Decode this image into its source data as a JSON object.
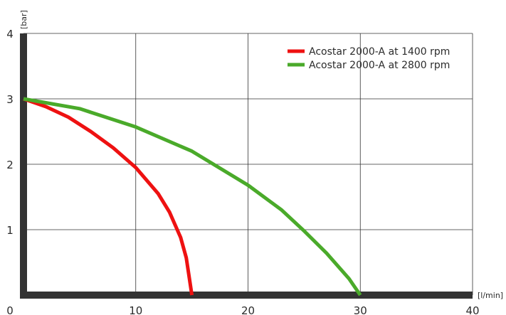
{
  "chart_data": {
    "type": "line",
    "xlabel": "[l/min]",
    "ylabel": "[bar]",
    "xlim": [
      0,
      40
    ],
    "ylim": [
      0,
      4
    ],
    "x_ticks": [
      0,
      10,
      20,
      30,
      40
    ],
    "y_ticks": [
      1,
      2,
      3,
      4
    ],
    "grid": true,
    "legend_position": "top-right",
    "series": [
      {
        "name": "Acostar 2000-A at 1400 rpm",
        "color": "#ee1111",
        "x": [
          0,
          2,
          4,
          6,
          8,
          10,
          12,
          13,
          14,
          14.5,
          15
        ],
        "y": [
          3.0,
          2.88,
          2.72,
          2.5,
          2.25,
          1.95,
          1.55,
          1.27,
          0.88,
          0.57,
          0.0
        ]
      },
      {
        "name": "Acostar 2000-A at 2800 rpm",
        "color": "#4aaa2a",
        "x": [
          0,
          5,
          10,
          15,
          20,
          23,
          25,
          27,
          29,
          30
        ],
        "y": [
          3.0,
          2.85,
          2.57,
          2.2,
          1.68,
          1.3,
          0.98,
          0.64,
          0.25,
          0.0
        ]
      }
    ]
  }
}
